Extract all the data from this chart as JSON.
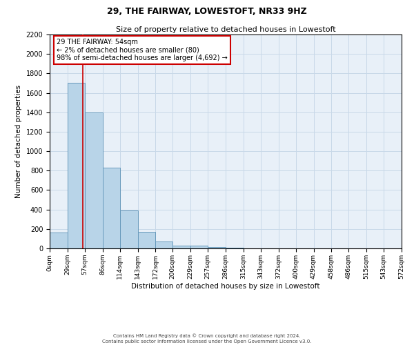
{
  "title": "29, THE FAIRWAY, LOWESTOFT, NR33 9HZ",
  "subtitle": "Size of property relative to detached houses in Lowestoft",
  "xlabel": "Distribution of detached houses by size in Lowestoft",
  "ylabel": "Number of detached properties",
  "bar_heights": [
    160,
    1700,
    1400,
    830,
    390,
    170,
    70,
    30,
    25,
    15,
    10,
    0,
    0,
    0,
    0,
    0,
    0,
    0,
    0,
    0
  ],
  "bin_edges": [
    0,
    29,
    57,
    86,
    114,
    143,
    172,
    200,
    229,
    257,
    286,
    315,
    343,
    372,
    400,
    429,
    458,
    486,
    515,
    543,
    572
  ],
  "xtick_labels": [
    "0sqm",
    "29sqm",
    "57sqm",
    "86sqm",
    "114sqm",
    "143sqm",
    "172sqm",
    "200sqm",
    "229sqm",
    "257sqm",
    "286sqm",
    "315sqm",
    "343sqm",
    "372sqm",
    "400sqm",
    "429sqm",
    "458sqm",
    "486sqm",
    "515sqm",
    "543sqm",
    "572sqm"
  ],
  "bar_color": "#b8d4e8",
  "bar_edge_color": "#6699bb",
  "property_line_x": 54,
  "property_line_color": "#cc0000",
  "ylim": [
    0,
    2200
  ],
  "yticks": [
    0,
    200,
    400,
    600,
    800,
    1000,
    1200,
    1400,
    1600,
    1800,
    2000,
    2200
  ],
  "annotation_title": "29 THE FAIRWAY: 54sqm",
  "annotation_line1": "← 2% of detached houses are smaller (80)",
  "annotation_line2": "98% of semi-detached houses are larger (4,692) →",
  "annotation_box_color": "#ffffff",
  "annotation_box_edge": "#cc0000",
  "grid_color": "#c8d8e8",
  "background_color": "#e8f0f8",
  "footer1": "Contains HM Land Registry data © Crown copyright and database right 2024.",
  "footer2": "Contains public sector information licensed under the Open Government Licence v3.0."
}
